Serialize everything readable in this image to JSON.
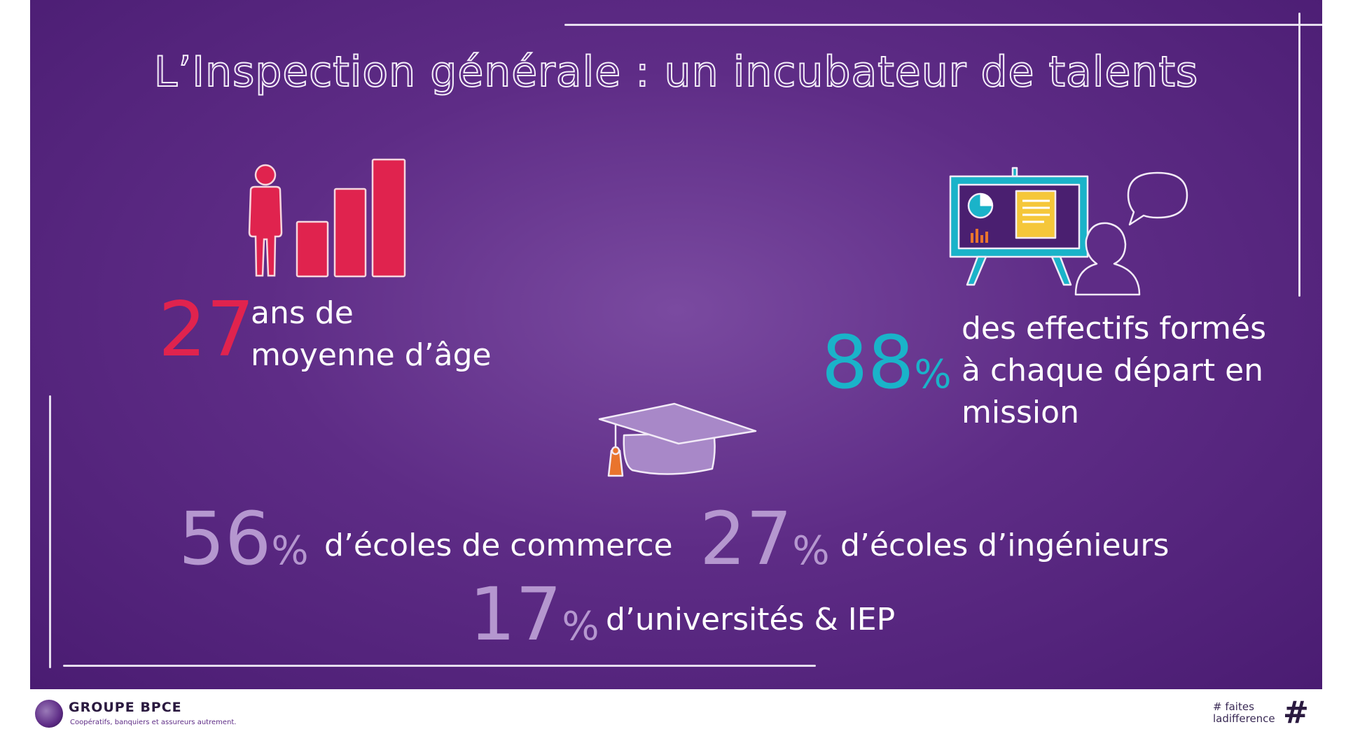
{
  "title": "L’Inspection générale : un incubateur de talents",
  "colors": {
    "background": "#5e2c86",
    "age_accent": "#e0234e",
    "training_accent": "#1ab3c9",
    "schools_accent": "#b597cf",
    "cap_tassel": "#e9742d"
  },
  "stats": {
    "age": {
      "number": "27",
      "line1": "ans de",
      "line2": "moyenne d’âge"
    },
    "training": {
      "number": "88",
      "unit": "%",
      "line1": "des effectifs formés",
      "line2": "à chaque départ en",
      "line3": "mission"
    },
    "commerce": {
      "number": "56",
      "unit": "%",
      "label": "d’écoles de commerce"
    },
    "engineers": {
      "number": "27",
      "unit": "%",
      "label": "d’écoles d’ingénieurs"
    },
    "universities": {
      "number": "17",
      "unit": "%",
      "label": "d’universités & IEP"
    }
  },
  "icons": {
    "age": "person-with-bar-chart-icon",
    "training": "presentation-board-icon",
    "schools": "graduation-cap-icon"
  },
  "footer": {
    "brand": "GROUPE BPCE",
    "tagline": "Coopératifs, banquiers et assureurs autrement.",
    "hashtag_line1": "# faites",
    "hashtag_line2": "ladifference",
    "hash_symbol": "#"
  }
}
